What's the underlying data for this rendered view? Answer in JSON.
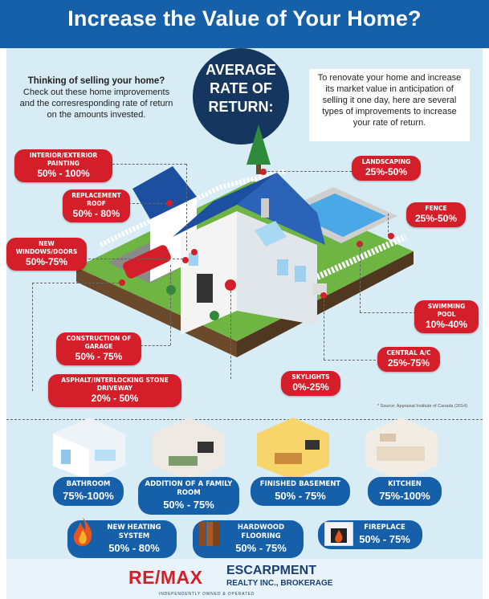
{
  "header": {
    "title": "Increase the Value of Your Home?"
  },
  "intro_left": {
    "heading": "Thinking of selling your home?",
    "body": "Check out these home improvements and the corresresponding rate of return on the amounts invested."
  },
  "center_badge": {
    "line1": "AVERAGE",
    "line2": "RATE OF",
    "line3": "RETURN:"
  },
  "intro_right": {
    "body": "To renovate your home and increase its market value in anticipation of selling it one day, here are several types of improvements to increase your rate of return."
  },
  "improvements": [
    {
      "label": "Interior/Exterior Painting",
      "value": "50% - 100%"
    },
    {
      "label": "Replacement Roof",
      "value": "50% - 80%"
    },
    {
      "label": "New Windows/Doors",
      "value": "50%-75%"
    },
    {
      "label": "Construction of Garage",
      "value": "50% - 75%"
    },
    {
      "label": "Asphalt/Interlocking Stone Driveway",
      "value": "20% - 50%"
    },
    {
      "label": "Skylights",
      "value": "0%-25%"
    },
    {
      "label": "Central A/C",
      "value": "25%-75%"
    },
    {
      "label": "Swimming Pool",
      "value": "10%-40%"
    },
    {
      "label": "Fence",
      "value": "25%-50%"
    },
    {
      "label": "Landscaping",
      "value": "25%-50%"
    }
  ],
  "source": "* Source: Appraisal Institute of Canada (2014)",
  "rooms": [
    {
      "label": "Bathroom",
      "value": "75%-100%"
    },
    {
      "label": "Addition of a Family Room",
      "value": "50% - 75%"
    },
    {
      "label": "Finished Basement",
      "value": "50% - 75%"
    },
    {
      "label": "Kitchen",
      "value": "75%-100%"
    }
  ],
  "small_items": [
    {
      "label": "New Heating System",
      "value": "50% - 80%",
      "icon": "fire-icon"
    },
    {
      "label": "Hardwood Flooring",
      "value": "50% - 75%",
      "icon": "wood-planks-icon"
    },
    {
      "label": "Fireplace",
      "value": "50% - 75%",
      "icon": "fireplace-icon"
    }
  ],
  "footer": {
    "brand": "RE/MAX",
    "company": "ESCARPMENT",
    "company_sub": "REALTY INC., BROKERAGE",
    "tagline": "INDEPENDENTLY OWNED & OPERATED"
  },
  "colors": {
    "blue": "#1560a8",
    "red": "#d41f2a",
    "navy": "#14365f",
    "panel": "#d8ecf5"
  }
}
